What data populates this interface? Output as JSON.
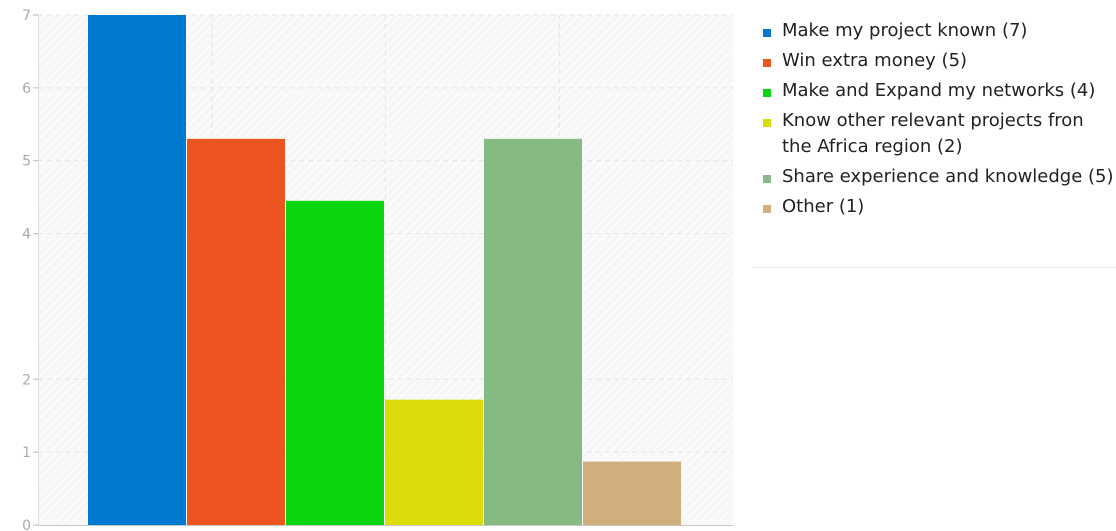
{
  "chart_data": {
    "type": "bar",
    "categories": [
      "Make my project known",
      "Win extra money",
      "Make and Expand my networks",
      "Know other relevant projects fron the Africa region",
      "Share experience and knowledge",
      "Other"
    ],
    "values": [
      7,
      5.3,
      4.45,
      1.72,
      5.3,
      0.87
    ],
    "colors": [
      "#0079d1",
      "#ec5520",
      "#0ad60f",
      "#dcdc0a",
      "#85ba82",
      "#d0ae7e"
    ],
    "yticks": [
      0,
      1,
      2,
      4,
      5,
      6,
      7
    ],
    "ylim": [
      0,
      7
    ],
    "grid": true,
    "legend_position": "right",
    "legend": [
      "Make my project known (7)",
      "Win extra money (5)",
      "Make and Expand my networks (4)",
      "Know other relevant projects fron the Africa region (2)",
      "Share experience and knowledge (5)",
      "Other (1)"
    ]
  }
}
